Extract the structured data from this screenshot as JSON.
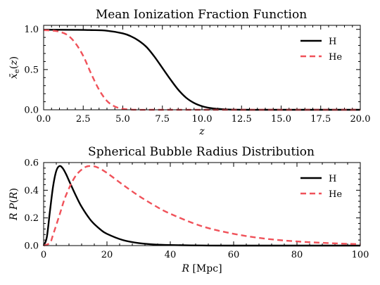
{
  "chart_data": [
    {
      "type": "line",
      "title": "Mean Ionization Fraction Function",
      "xlabel": "z",
      "ylabel": "x̄_e(z)",
      "xlim": [
        0,
        20
      ],
      "ylim": [
        0,
        1.05
      ],
      "xticks": [
        0,
        2.5,
        5,
        7.5,
        10,
        12.5,
        15,
        17.5,
        20
      ],
      "xticklabels": [
        "0.0",
        "2.5",
        "5.0",
        "7.5",
        "10.0",
        "12.5",
        "15.0",
        "17.5",
        "20.0"
      ],
      "yticks": [
        0,
        0.5,
        1.0
      ],
      "yticklabels": [
        "0.0",
        "0.5",
        "1.0"
      ],
      "legend_position": "top-right",
      "series": [
        {
          "name": "H",
          "color": "#000000",
          "dash": "solid",
          "x": [
            0,
            1,
            2,
            3,
            4,
            5,
            5.5,
            6,
            6.5,
            7,
            7.5,
            8,
            8.5,
            9,
            9.5,
            10,
            10.5,
            11,
            11.5,
            12,
            13,
            15,
            20
          ],
          "y": [
            0.995,
            0.995,
            0.994,
            0.991,
            0.983,
            0.95,
            0.915,
            0.86,
            0.78,
            0.66,
            0.52,
            0.38,
            0.25,
            0.15,
            0.085,
            0.045,
            0.022,
            0.011,
            0.005,
            0.002,
            0.0,
            0.0,
            0.0
          ]
        },
        {
          "name": "He",
          "color": "#f0525a",
          "dash": "dashed",
          "x": [
            0,
            0.5,
            1,
            1.5,
            2,
            2.5,
            3,
            3.5,
            4,
            4.5,
            5,
            5.5,
            6,
            8,
            20
          ],
          "y": [
            0.99,
            0.985,
            0.97,
            0.93,
            0.83,
            0.67,
            0.45,
            0.25,
            0.11,
            0.04,
            0.012,
            0.003,
            0.0,
            0.0,
            0.0
          ]
        }
      ]
    },
    {
      "type": "line",
      "title": "Spherical Bubble Radius Distribution",
      "xlabel": "R [Mpc]",
      "ylabel": "R P(R)",
      "xlim": [
        0,
        100
      ],
      "ylim": [
        0,
        0.6
      ],
      "xticks": [
        0,
        20,
        40,
        60,
        80,
        100
      ],
      "xticklabels": [
        "0",
        "20",
        "40",
        "60",
        "80",
        "100"
      ],
      "yticks": [
        0,
        0.2,
        0.4,
        0.6
      ],
      "yticklabels": [
        "0.0",
        "0.2",
        "0.4",
        "0.6"
      ],
      "legend_position": "top-right",
      "series": [
        {
          "name": "H",
          "color": "#000000",
          "dash": "solid",
          "x": [
            0,
            1,
            2,
            3,
            4,
            5,
            6,
            7,
            8,
            10,
            12,
            15,
            18,
            20,
            25,
            30,
            35,
            40,
            50,
            60,
            100
          ],
          "y": [
            0.0,
            0.06,
            0.25,
            0.43,
            0.54,
            0.575,
            0.56,
            0.52,
            0.47,
            0.37,
            0.28,
            0.18,
            0.115,
            0.085,
            0.04,
            0.018,
            0.008,
            0.004,
            0.001,
            0.0,
            0.0
          ]
        },
        {
          "name": "He",
          "color": "#f0525a",
          "dash": "dashed",
          "x": [
            0,
            2,
            3,
            5,
            7,
            10,
            13,
            15,
            17,
            20,
            25,
            30,
            35,
            40,
            50,
            60,
            70,
            80,
            90,
            100
          ],
          "y": [
            0.0,
            0.02,
            0.08,
            0.22,
            0.36,
            0.5,
            0.565,
            0.575,
            0.565,
            0.525,
            0.44,
            0.36,
            0.29,
            0.23,
            0.14,
            0.085,
            0.05,
            0.03,
            0.018,
            0.01
          ]
        }
      ]
    }
  ]
}
